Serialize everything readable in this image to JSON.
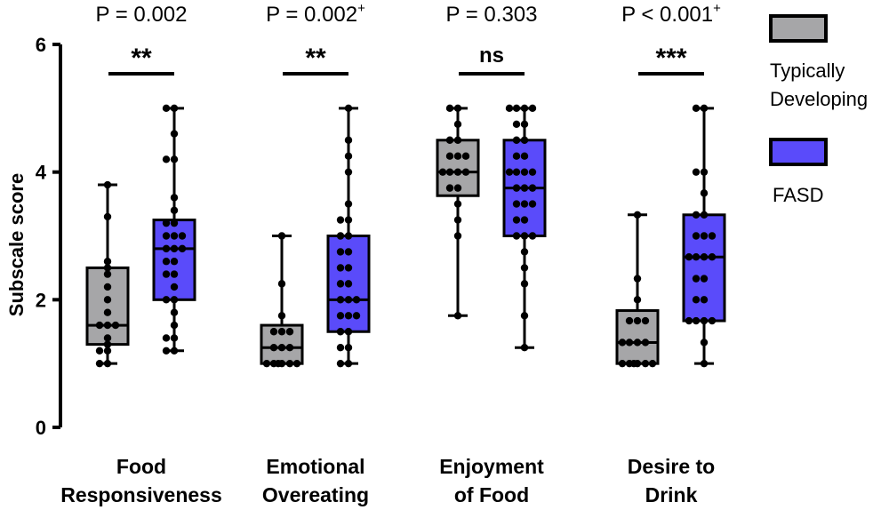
{
  "chart_data": {
    "type": "box",
    "ylabel": "Subscale score",
    "ylim": [
      0,
      6
    ],
    "yticks": [
      0,
      2,
      4,
      6
    ],
    "categories": [
      {
        "line1": "Food",
        "line2": "Responsiveness",
        "p_text": "P = 0.002",
        "p_sup": "",
        "sig": "**"
      },
      {
        "line1": "Emotional",
        "line2": "Overeating",
        "p_text": "P = 0.002",
        "p_sup": "+",
        "sig": "**"
      },
      {
        "line1": "Enjoyment",
        "line2": "of Food",
        "p_text": "P = 0.303",
        "p_sup": "",
        "sig": "ns"
      },
      {
        "line1": "Desire to",
        "line2": "Drink",
        "p_text": "P < 0.001",
        "p_sup": "+",
        "sig": "***"
      }
    ],
    "series": [
      {
        "name": "Typically Developing",
        "name_line1": "Typically",
        "name_line2": "Developing",
        "color": "#a6a6a8",
        "boxes": [
          {
            "min": 1.0,
            "q1": 1.3,
            "median": 1.6,
            "q3": 2.5,
            "max": 3.8,
            "points": [
              1.0,
              1.0,
              1.2,
              1.2,
              1.3,
              1.4,
              1.6,
              1.6,
              1.6,
              1.8,
              2.0,
              2.2,
              2.4,
              2.5,
              2.6,
              3.3,
              3.8
            ]
          },
          {
            "min": 1.0,
            "q1": 1.0,
            "median": 1.25,
            "q3": 1.6,
            "max": 3.0,
            "points": [
              1.0,
              1.0,
              1.0,
              1.0,
              1.0,
              1.0,
              1.25,
              1.25,
              1.25,
              1.5,
              1.5,
              1.5,
              1.75,
              2.25,
              3.0
            ]
          },
          {
            "min": 1.75,
            "q1": 3.63,
            "median": 4.0,
            "q3": 4.5,
            "max": 5.0,
            "points": [
              1.75,
              3.0,
              3.25,
              3.5,
              3.75,
              3.75,
              4.0,
              4.0,
              4.0,
              4.0,
              4.25,
              4.25,
              4.25,
              4.5,
              4.5,
              4.75,
              5.0,
              5.0
            ]
          },
          {
            "min": 1.0,
            "q1": 1.0,
            "median": 1.33,
            "q3": 1.83,
            "max": 3.33,
            "points": [
              1.0,
              1.0,
              1.0,
              1.0,
              1.0,
              1.0,
              1.33,
              1.33,
              1.33,
              1.33,
              1.67,
              1.67,
              1.67,
              2.0,
              2.33,
              3.33
            ]
          }
        ]
      },
      {
        "name": "FASD",
        "name_line1": "FASD",
        "name_line2": "",
        "color": "#5a4bfa",
        "boxes": [
          {
            "min": 1.2,
            "q1": 2.0,
            "median": 2.8,
            "q3": 3.25,
            "max": 5.0,
            "points": [
              1.2,
              1.2,
              1.4,
              1.4,
              1.6,
              1.8,
              2.0,
              2.0,
              2.2,
              2.4,
              2.4,
              2.6,
              2.6,
              2.8,
              2.8,
              2.8,
              3.0,
              3.0,
              3.0,
              3.2,
              3.2,
              3.4,
              3.6,
              4.2,
              4.2,
              4.6,
              5.0,
              5.0
            ]
          },
          {
            "min": 1.0,
            "q1": 1.5,
            "median": 2.0,
            "q3": 3.0,
            "max": 5.0,
            "points": [
              1.0,
              1.0,
              1.25,
              1.25,
              1.5,
              1.5,
              1.75,
              1.75,
              1.75,
              2.0,
              2.0,
              2.0,
              2.25,
              2.25,
              2.5,
              2.5,
              2.75,
              2.75,
              3.0,
              3.0,
              3.25,
              3.25,
              3.5,
              4.0,
              4.25,
              4.5,
              5.0
            ]
          },
          {
            "min": 1.25,
            "q1": 3.0,
            "median": 3.75,
            "q3": 4.5,
            "max": 5.0,
            "points": [
              1.25,
              1.75,
              2.25,
              2.5,
              2.75,
              3.0,
              3.0,
              3.0,
              3.25,
              3.25,
              3.5,
              3.5,
              3.5,
              3.75,
              3.75,
              3.75,
              4.0,
              4.0,
              4.0,
              4.0,
              4.25,
              4.25,
              4.5,
              4.5,
              4.75,
              4.75,
              5.0,
              5.0,
              5.0,
              5.0
            ]
          },
          {
            "min": 1.0,
            "q1": 1.67,
            "median": 2.67,
            "q3": 3.33,
            "max": 5.0,
            "points": [
              1.0,
              1.33,
              1.67,
              1.67,
              1.67,
              1.67,
              2.0,
              2.0,
              2.33,
              2.33,
              2.67,
              2.67,
              2.67,
              2.67,
              3.0,
              3.0,
              3.0,
              3.33,
              3.33,
              3.67,
              4.0,
              4.0,
              5.0,
              5.0
            ]
          }
        ]
      }
    ]
  }
}
